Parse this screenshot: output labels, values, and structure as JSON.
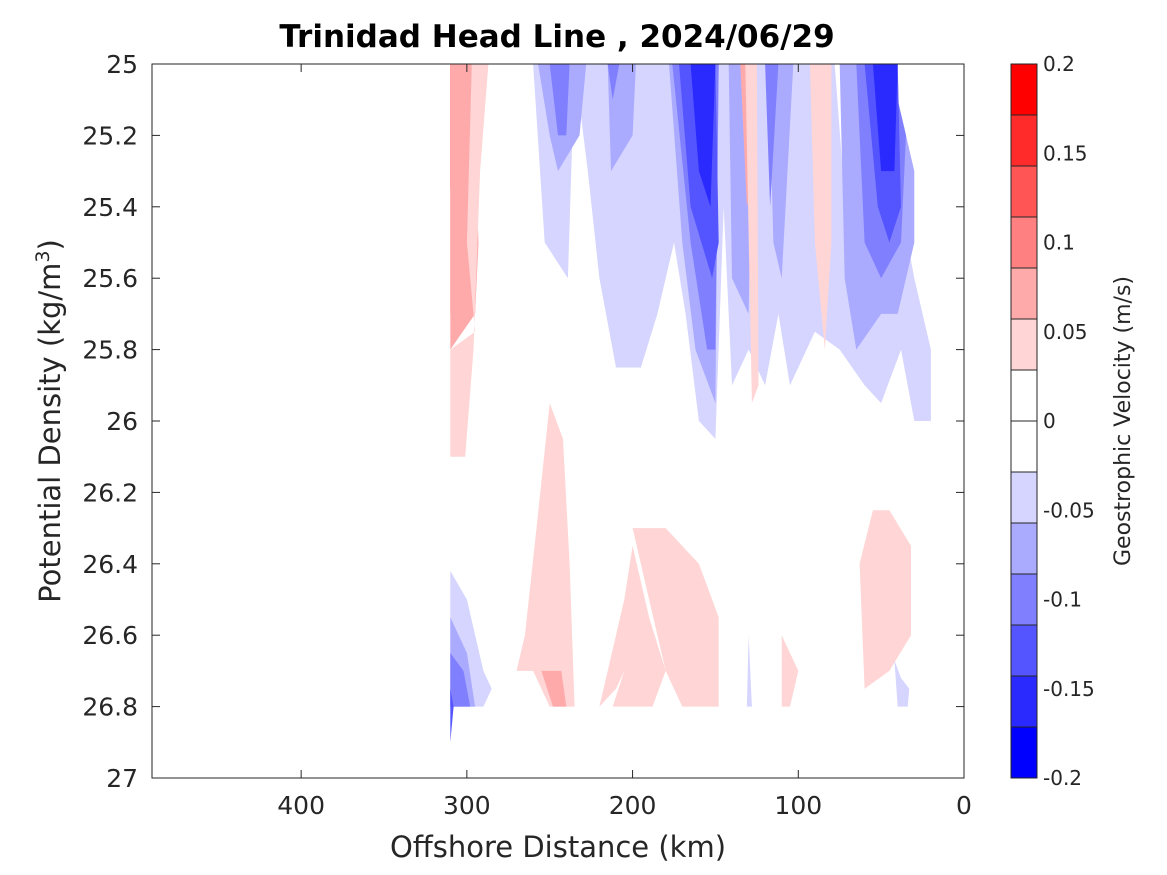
{
  "chart_data": {
    "type": "heatmap",
    "subtype": "filled-contour",
    "title": "Trinidad Head Line , 2024/06/29",
    "xlabel": "Offshore Distance (km)",
    "ylabel_main": "Potential Density (kg/m",
    "ylabel_sup": "3",
    "ylabel_close": ")",
    "xlim": [
      490,
      0
    ],
    "x_reversed": true,
    "ylim": [
      27,
      25
    ],
    "y_reversed": true,
    "x_ticks": [
      400,
      300,
      200,
      100,
      0
    ],
    "x_tick_labels": [
      "400",
      "300",
      "200",
      "100",
      "0"
    ],
    "y_ticks": [
      25,
      25.2,
      25.4,
      25.6,
      25.8,
      26,
      26.2,
      26.4,
      26.6,
      26.8,
      27
    ],
    "y_tick_labels": [
      "25",
      "25.2",
      "25.4",
      "25.6",
      "25.8",
      "26",
      "26.2",
      "26.4",
      "26.6",
      "26.8",
      "27"
    ],
    "grid": false,
    "colorbar": {
      "label": "Geostrophic Velocity (m/s)",
      "range": [
        -0.2,
        0.2
      ],
      "ticks": [
        0.2,
        0.15,
        0.1,
        0.05,
        0,
        -0.05,
        -0.1,
        -0.15,
        -0.2
      ],
      "tick_labels": [
        "0.2",
        "0.15",
        "0.1",
        "0.05",
        "0",
        "-0.05",
        "-0.1",
        "-0.15",
        "-0.2"
      ],
      "level_colors": [
        "#ff0000",
        "#ff2a2a",
        "#ff5555",
        "#ff8080",
        "#ffaaaa",
        "#ffd5d5",
        "#ffffff",
        "#ffffff",
        "#d5d5ff",
        "#aaaaff",
        "#8080ff",
        "#5555ff",
        "#2a2aff",
        "#0000ff"
      ]
    },
    "contour_regions": [
      {
        "level": 0.0875,
        "color": "#ff8080",
        "points": [
          [
            310,
            25
          ],
          [
            298,
            25
          ],
          [
            297,
            25.3
          ],
          [
            300,
            25.6
          ],
          [
            310,
            25.7
          ]
        ]
      },
      {
        "level": 0.1125,
        "color": "#ff5555",
        "points": [
          [
            310,
            25
          ],
          [
            304,
            25
          ],
          [
            303,
            25.25
          ],
          [
            310,
            25.35
          ]
        ]
      },
      {
        "level": 0.0625,
        "color": "#ffaaaa",
        "points": [
          [
            310,
            25
          ],
          [
            297,
            25
          ],
          [
            293,
            25.5
          ],
          [
            295,
            25.7
          ],
          [
            310,
            25.8
          ]
        ]
      },
      {
        "level": 0.0375,
        "color": "#ffd5d5",
        "points": [
          [
            310,
            25.8
          ],
          [
            295,
            25.75
          ],
          [
            300,
            25.5
          ],
          [
            297,
            25
          ],
          [
            287,
            25
          ],
          [
            292,
            25.3
          ],
          [
            296,
            25.8
          ],
          [
            301,
            26.1
          ],
          [
            310,
            26.1
          ]
        ]
      },
      {
        "level": -0.0375,
        "color": "#d5d5ff",
        "points": [
          [
            260,
            25
          ],
          [
            253,
            25.5
          ],
          [
            239,
            25.6
          ],
          [
            235,
            25
          ],
          [
            227,
            25.3
          ],
          [
            220,
            25.6
          ],
          [
            210,
            25.85
          ],
          [
            195,
            25.85
          ],
          [
            185,
            25.7
          ],
          [
            175,
            25.5
          ],
          [
            168,
            25.7
          ],
          [
            160,
            26
          ],
          [
            150,
            26.05
          ],
          [
            145,
            25.4
          ],
          [
            140,
            25.9
          ],
          [
            130,
            25.8
          ],
          [
            120,
            25.9
          ],
          [
            112,
            25.7
          ],
          [
            105,
            25.9
          ],
          [
            90,
            25.75
          ],
          [
            75,
            25.8
          ],
          [
            60,
            25.9
          ],
          [
            50,
            25.95
          ],
          [
            38,
            25.8
          ],
          [
            30,
            26
          ],
          [
            20,
            26
          ],
          [
            20,
            25.8
          ],
          [
            30,
            25.6
          ],
          [
            42,
            25.3
          ],
          [
            55,
            25
          ],
          [
            68,
            25
          ],
          [
            70,
            25.5
          ],
          [
            78,
            25
          ],
          [
            100,
            25
          ],
          [
            110,
            25
          ],
          [
            125,
            25
          ],
          [
            140,
            25
          ],
          [
            150,
            25
          ],
          [
            175,
            25
          ],
          [
            185,
            25
          ],
          [
            200,
            25
          ],
          [
            215,
            25
          ],
          [
            240,
            25
          ]
        ]
      },
      {
        "level": -0.0625,
        "color": "#aaaaff",
        "points": [
          [
            257,
            25
          ],
          [
            250,
            25.2
          ],
          [
            245,
            25.3
          ],
          [
            232,
            25.2
          ],
          [
            228,
            25
          ],
          [
            215,
            25
          ],
          [
            213,
            25.3
          ],
          [
            200,
            25.2
          ],
          [
            198,
            25
          ],
          [
            178,
            25
          ],
          [
            170,
            25.5
          ],
          [
            162,
            25.8
          ],
          [
            150,
            25.95
          ],
          [
            148,
            25
          ],
          [
            142,
            25
          ],
          [
            140,
            25.6
          ],
          [
            130,
            25.7
          ],
          [
            127,
            25
          ],
          [
            118,
            25
          ],
          [
            115,
            25.5
          ],
          [
            110,
            25.6
          ],
          [
            103,
            25
          ],
          [
            75,
            25
          ],
          [
            72,
            25.6
          ],
          [
            65,
            25.8
          ],
          [
            50,
            25.7
          ],
          [
            40,
            25.7
          ],
          [
            30,
            25.5
          ],
          [
            30,
            25.3
          ],
          [
            45,
            25
          ]
        ]
      },
      {
        "level": -0.0875,
        "color": "#8080ff",
        "points": [
          [
            250,
            25
          ],
          [
            245,
            25.2
          ],
          [
            240,
            25.2
          ],
          [
            238,
            25
          ],
          [
            215,
            25
          ],
          [
            212,
            25.1
          ],
          [
            208,
            25
          ],
          [
            176,
            25
          ],
          [
            165,
            25.5
          ],
          [
            155,
            25.8
          ],
          [
            150,
            25.8
          ],
          [
            148,
            25
          ],
          [
            120,
            25
          ],
          [
            117,
            25.4
          ],
          [
            112,
            25
          ],
          [
            65,
            25
          ],
          [
            60,
            25.5
          ],
          [
            50,
            25.6
          ],
          [
            38,
            25.5
          ],
          [
            35,
            25.2
          ],
          [
            45,
            25
          ]
        ]
      },
      {
        "level": -0.1125,
        "color": "#5555ff",
        "points": [
          [
            172,
            25
          ],
          [
            165,
            25.4
          ],
          [
            152,
            25.6
          ],
          [
            148,
            25.5
          ],
          [
            150,
            25
          ],
          [
            60,
            25
          ],
          [
            52,
            25.4
          ],
          [
            45,
            25.5
          ],
          [
            38,
            25.4
          ],
          [
            40,
            25
          ]
        ]
      },
      {
        "level": -0.1375,
        "color": "#2a2aff",
        "points": [
          [
            165,
            25
          ],
          [
            160,
            25.3
          ],
          [
            153,
            25.4
          ],
          [
            150,
            25
          ],
          [
            55,
            25
          ],
          [
            50,
            25.3
          ],
          [
            42,
            25.3
          ],
          [
            40,
            25
          ]
        ]
      },
      {
        "level": 0.0375,
        "color": "#ffaaaa",
        "points": [
          [
            135,
            25
          ],
          [
            128,
            25
          ],
          [
            127,
            25.3
          ],
          [
            131,
            25.4
          ]
        ]
      },
      {
        "level": 0.0375,
        "color": "#ffaaaa",
        "points": [
          [
            92,
            25
          ],
          [
            82,
            25
          ],
          [
            83,
            25.3
          ],
          [
            88,
            25.4
          ]
        ]
      },
      {
        "level": 0.0625,
        "color": "#ff8080",
        "points": [
          [
            90,
            25
          ],
          [
            85,
            25
          ],
          [
            86,
            25.15
          ]
        ]
      },
      {
        "level": 0.0375,
        "color": "#ffd5d5",
        "points": [
          [
            132,
            25
          ],
          [
            125,
            25
          ],
          [
            124,
            25.9
          ],
          [
            128,
            25.95
          ]
        ]
      },
      {
        "level": 0.0375,
        "color": "#ffd5d5",
        "points": [
          [
            93,
            25
          ],
          [
            80,
            25
          ],
          [
            80,
            25.5
          ],
          [
            84,
            25.8
          ],
          [
            90,
            25.5
          ]
        ]
      },
      {
        "level": 0.0375,
        "color": "#ffd5d5",
        "points": [
          [
            250,
            25.95
          ],
          [
            258,
            26.3
          ],
          [
            265,
            26.6
          ],
          [
            270,
            26.7
          ],
          [
            260,
            26.7
          ],
          [
            250,
            26.8
          ],
          [
            235,
            26.8
          ],
          [
            238,
            26.4
          ],
          [
            242,
            26.05
          ]
        ]
      },
      {
        "level": 0.0625,
        "color": "#ffaaaa",
        "points": [
          [
            255,
            26.7
          ],
          [
            248,
            26.8
          ],
          [
            240,
            26.8
          ],
          [
            243,
            26.7
          ]
        ]
      },
      {
        "level": 0.0375,
        "color": "#ffd5d5",
        "points": [
          [
            200,
            26.3
          ],
          [
            190,
            26.5
          ],
          [
            180,
            26.7
          ],
          [
            170,
            26.8
          ],
          [
            220,
            26.8
          ],
          [
            210,
            26.75
          ],
          [
            205,
            26.7
          ],
          [
            212,
            26.8
          ],
          [
            188,
            26.8
          ],
          [
            180,
            26.7
          ],
          [
            190,
            26.55
          ],
          [
            200,
            26.35
          ],
          [
            205,
            26.5
          ],
          [
            220,
            26.8
          ],
          [
            180,
            26.8
          ],
          [
            148,
            26.8
          ],
          [
            148,
            26.55
          ],
          [
            160,
            26.4
          ],
          [
            170,
            26.35
          ],
          [
            180,
            26.3
          ],
          [
            190,
            26.3
          ]
        ]
      },
      {
        "level": 0.0375,
        "color": "#ffd5d5",
        "points": [
          [
            55,
            26.25
          ],
          [
            45,
            26.25
          ],
          [
            32,
            26.35
          ],
          [
            32,
            26.6
          ],
          [
            45,
            26.7
          ],
          [
            60,
            26.75
          ],
          [
            63,
            26.4
          ]
        ]
      },
      {
        "level": 0.0375,
        "color": "#ffd5d5",
        "points": [
          [
            110,
            26.6
          ],
          [
            100,
            26.7
          ],
          [
            105,
            26.8
          ],
          [
            100,
            26.8
          ],
          [
            110,
            26.8
          ]
        ]
      },
      {
        "level": -0.0375,
        "color": "#d5d5ff",
        "points": [
          [
            310,
            26.42
          ],
          [
            300,
            26.5
          ],
          [
            290,
            26.7
          ],
          [
            285,
            26.75
          ],
          [
            290,
            26.8
          ],
          [
            310,
            26.8
          ]
        ]
      },
      {
        "level": -0.0625,
        "color": "#aaaaff",
        "points": [
          [
            310,
            26.55
          ],
          [
            300,
            26.65
          ],
          [
            295,
            26.8
          ],
          [
            310,
            26.8
          ]
        ]
      },
      {
        "level": -0.0875,
        "color": "#8080ff",
        "points": [
          [
            310,
            26.65
          ],
          [
            302,
            26.7
          ],
          [
            298,
            26.8
          ],
          [
            310,
            26.8
          ]
        ]
      },
      {
        "level": -0.1375,
        "color": "#5555ff",
        "points": [
          [
            310,
            26.75
          ],
          [
            308,
            26.8
          ],
          [
            310,
            26.9
          ]
        ]
      },
      {
        "level": -0.0375,
        "color": "#d5d5ff",
        "points": [
          [
            130,
            26.6
          ],
          [
            128,
            26.8
          ],
          [
            131,
            26.8
          ]
        ]
      },
      {
        "level": -0.0375,
        "color": "#d5d5ff",
        "points": [
          [
            42,
            26.67
          ],
          [
            38,
            26.72
          ],
          [
            33,
            26.75
          ],
          [
            34,
            26.8
          ],
          [
            40,
            26.8
          ]
        ]
      }
    ]
  }
}
